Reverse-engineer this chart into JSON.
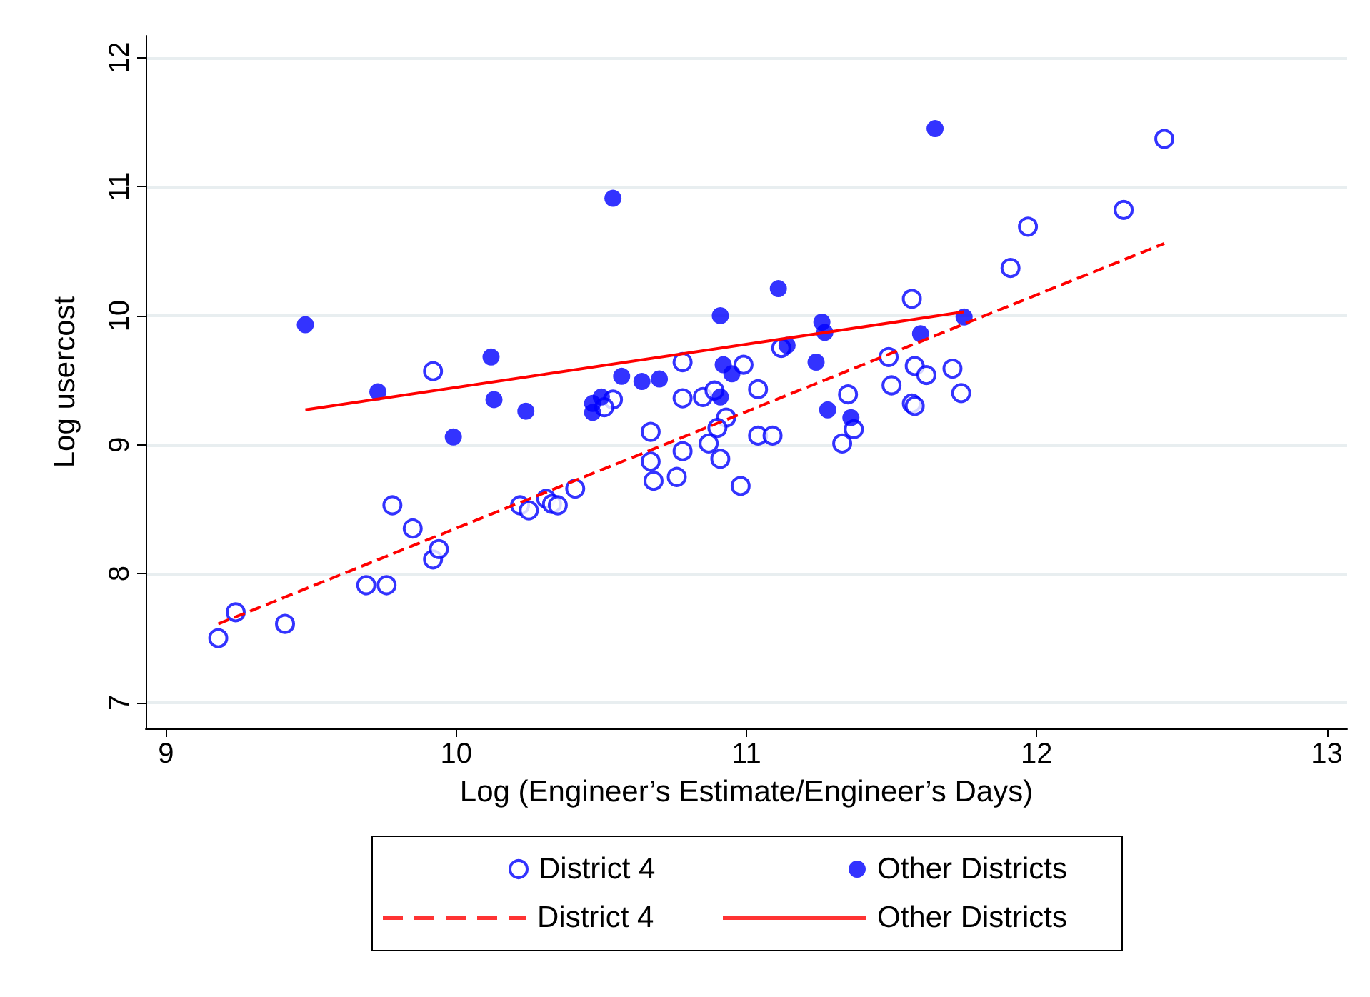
{
  "chart_data": {
    "type": "scatter",
    "xlabel": "Log (Engineer’s Estimate/Engineer’s Days)",
    "ylabel": "Log usercost",
    "xlim": [
      8.93,
      13.07
    ],
    "xticks": [
      9,
      10,
      11,
      12,
      13
    ],
    "ylim": [
      6.8,
      12.17
    ],
    "yticks": [
      7,
      8,
      9,
      10,
      11,
      12
    ],
    "grid": "y",
    "legend": "bottom",
    "marker": "circle",
    "series": [
      {
        "name": "District 4",
        "color": "#0000ff",
        "x": [
          9.18,
          9.24,
          9.41,
          9.69,
          9.76,
          9.78,
          9.85,
          9.92,
          9.94,
          9.92,
          10.22,
          10.25,
          10.31,
          10.33,
          10.35,
          10.41,
          10.54,
          10.51,
          10.78,
          10.67,
          10.78,
          10.85,
          10.89,
          10.99,
          11.04,
          11.12,
          10.93,
          10.9,
          10.87,
          10.78,
          10.67,
          10.68,
          10.76,
          10.91,
          10.98,
          11.04,
          11.09,
          11.35,
          11.33,
          11.57,
          11.49,
          11.58,
          11.62,
          11.71,
          11.74,
          11.5,
          11.57,
          11.58,
          11.37,
          11.91,
          12.44,
          12.3,
          11.97
        ],
        "values": [
          7.5,
          7.7,
          7.61,
          7.91,
          7.91,
          8.53,
          8.35,
          8.11,
          8.19,
          9.57,
          8.53,
          8.49,
          8.58,
          8.54,
          8.53,
          8.66,
          9.35,
          9.29,
          9.64,
          9.1,
          9.36,
          9.37,
          9.42,
          9.62,
          9.43,
          9.75,
          9.21,
          9.13,
          9.01,
          8.95,
          8.87,
          8.72,
          8.75,
          8.89,
          8.68,
          9.07,
          9.07,
          9.39,
          9.01,
          10.13,
          9.68,
          9.61,
          9.54,
          9.59,
          9.4,
          9.46,
          9.32,
          9.3,
          9.12,
          10.37,
          11.37,
          10.82,
          10.69
        ]
      },
      {
        "name": "Other Districts",
        "color": "#0000ff",
        "x": [
          9.48,
          9.73,
          10.12,
          10.13,
          10.24,
          9.99,
          10.47,
          10.5,
          10.47,
          10.57,
          10.64,
          10.7,
          10.91,
          11.11,
          10.92,
          10.95,
          10.91,
          11.14,
          11.26,
          11.27,
          11.24,
          11.28,
          11.36,
          11.6,
          11.75,
          11.65,
          10.54
        ],
        "values": [
          9.93,
          9.41,
          9.68,
          9.35,
          9.26,
          9.06,
          9.32,
          9.37,
          9.25,
          9.53,
          9.49,
          9.51,
          10.0,
          10.21,
          9.62,
          9.55,
          9.37,
          9.77,
          9.95,
          9.87,
          9.64,
          9.27,
          9.21,
          9.86,
          9.99,
          11.45,
          10.91
        ]
      },
      {
        "name": "District 4",
        "type": "line",
        "color": "#ff0000",
        "marker": "none",
        "line_style": "dashed",
        "x": [
          9.18,
          12.44
        ],
        "values": [
          7.61,
          10.56
        ]
      },
      {
        "name": "Other Districts",
        "type": "line",
        "color": "#ff0000",
        "marker": "none",
        "line_style": "solid",
        "x": [
          9.48,
          11.75
        ],
        "values": [
          9.27,
          10.03
        ]
      }
    ]
  }
}
